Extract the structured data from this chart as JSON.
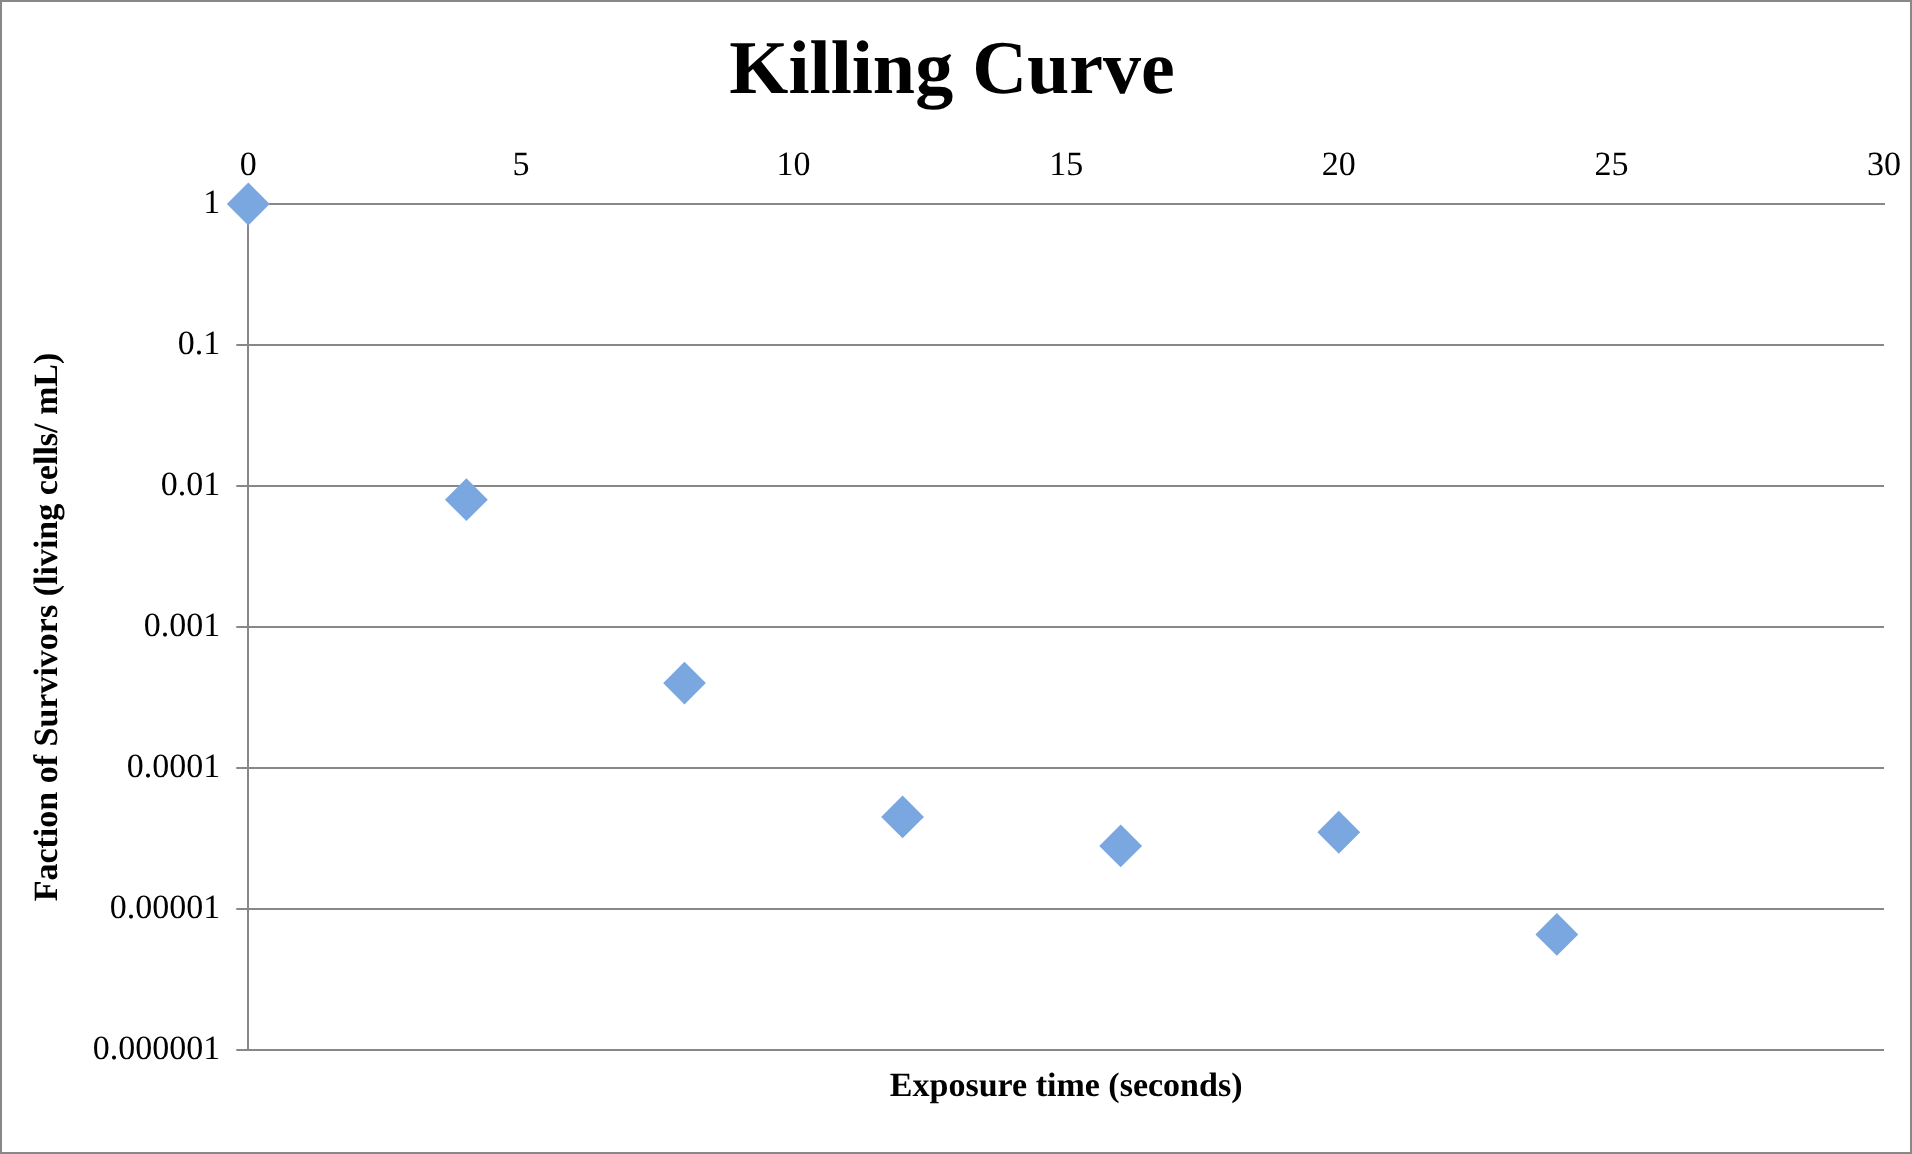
{
  "chart_data": {
    "type": "scatter",
    "title": "Killing Curve",
    "xlabel": "Exposure time (seconds)",
    "ylabel": "Faction of Survivors (living cells/ mL)",
    "x": [
      0,
      4,
      8,
      12,
      16,
      20,
      24
    ],
    "series": [
      {
        "color": "#7ba7e1",
        "values": [
          1,
          0.008,
          0.0004,
          4.5e-05,
          2.8e-05,
          3.5e-05,
          6.6e-06
        ]
      }
    ],
    "xlim": [
      0,
      30
    ],
    "xticks": [
      0,
      5,
      10,
      15,
      20,
      25,
      30
    ],
    "ylim": [
      1e-06,
      1
    ],
    "yticks": [
      1,
      0.1,
      0.01,
      0.001,
      0.0001,
      {
        "value": 1e-05,
        "label": "0.00001"
      },
      {
        "value": 1e-06,
        "label": "0.000001"
      }
    ],
    "log": "y",
    "grid": "y",
    "legend": false,
    "marker": "diamond"
  }
}
